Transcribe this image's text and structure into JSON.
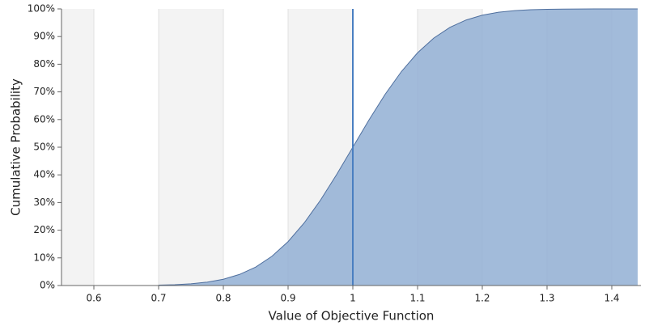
{
  "chart_data": {
    "type": "area",
    "ylabel": "Cumulative Probability",
    "xlabel": "Value of Objective Function",
    "x": [
      0.7,
      0.725,
      0.75,
      0.775,
      0.8,
      0.825,
      0.85,
      0.875,
      0.9,
      0.925,
      0.95,
      0.975,
      1.0,
      1.025,
      1.05,
      1.075,
      1.1,
      1.125,
      1.15,
      1.175,
      1.2,
      1.225,
      1.25,
      1.275,
      1.3,
      1.325,
      1.35,
      1.375,
      1.4,
      1.425,
      1.44
    ],
    "values": [
      0.13,
      0.3,
      0.62,
      1.22,
      2.28,
      4.01,
      6.68,
      10.56,
      15.87,
      22.66,
      30.85,
      40.13,
      50,
      59.87,
      69.15,
      77.34,
      84.13,
      89.44,
      93.32,
      95.99,
      97.72,
      98.78,
      99.38,
      99.7,
      99.87,
      99.94,
      99.98,
      99.99,
      100,
      100,
      100
    ],
    "color": "#92afd4",
    "line_color": "#4f6f9e",
    "vline": 1.0,
    "vline_color": "#4a7fc1",
    "xlim": [
      0.55,
      1.445
    ],
    "ylim": [
      0,
      100
    ],
    "xticks": [
      0.6,
      0.7,
      0.8,
      0.9,
      {
        "value": 1.0,
        "label": "1"
      },
      1.1,
      1.2,
      1.3,
      1.4
    ],
    "yticks": [
      {
        "value": 0,
        "label": "0%"
      },
      {
        "value": 10,
        "label": "10%"
      },
      {
        "value": 20,
        "label": "20%"
      },
      {
        "value": 30,
        "label": "30%"
      },
      {
        "value": 40,
        "label": "40%"
      },
      {
        "value": 50,
        "label": "50%"
      },
      {
        "value": 60,
        "label": "60%"
      },
      {
        "value": 70,
        "label": "70%"
      },
      {
        "value": 80,
        "label": "80%"
      },
      {
        "value": 90,
        "label": "90%"
      },
      {
        "value": 100,
        "label": "100%"
      }
    ],
    "band_color": "#f3f3f3",
    "grid": true
  }
}
